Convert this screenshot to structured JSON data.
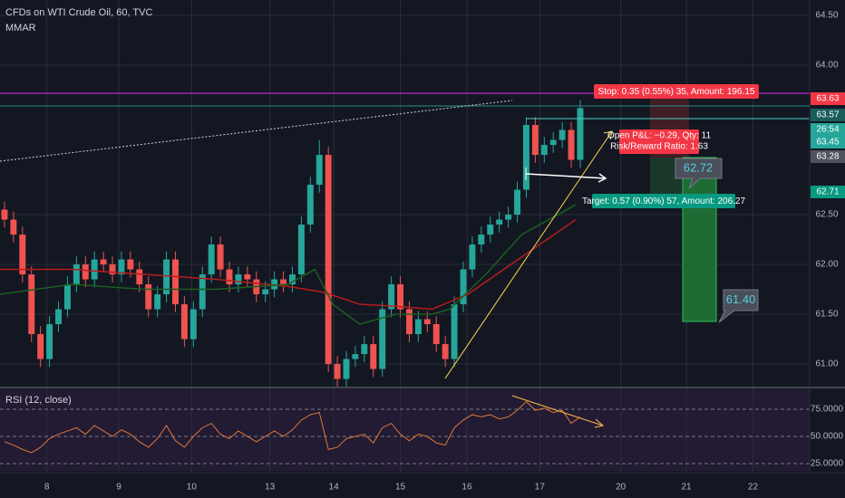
{
  "header": {
    "title": "CFDs on WTI Crude Oil, 60, TVC",
    "indicator": "MMAR"
  },
  "chart_data": [
    {
      "type": "candlestick",
      "xlim": [
        0,
        90
      ],
      "xticks": [
        {
          "value": 5.2,
          "label": "8"
        },
        {
          "value": 13.2,
          "label": "9"
        },
        {
          "value": 21.3,
          "label": "10"
        },
        {
          "value": 30.0,
          "label": "13"
        },
        {
          "value": 37.1,
          "label": "14"
        },
        {
          "value": 44.5,
          "label": "15"
        },
        {
          "value": 51.9,
          "label": "16"
        },
        {
          "value": 60.0,
          "label": "17"
        },
        {
          "value": 69.0,
          "label": "20"
        },
        {
          "value": 76.3,
          "label": "21"
        },
        {
          "value": 83.7,
          "label": "22"
        }
      ],
      "ylim": [
        60.773,
        64.655
      ],
      "yticks": [
        {
          "value": 64.5,
          "label": "64.50"
        },
        {
          "value": 64.0,
          "label": "64.00"
        },
        {
          "value": 62.5,
          "label": "62.50"
        },
        {
          "value": 62.0,
          "label": "62.00"
        },
        {
          "value": 61.5,
          "label": "61.50"
        },
        {
          "value": 61.0,
          "label": "61.00"
        }
      ],
      "grid": true,
      "up_color": "#26a69a",
      "down_color": "#ef5350",
      "open": [
        62.55,
        62.45,
        62.3,
        61.9,
        61.3,
        61.05,
        61.4,
        61.55,
        61.8,
        62.0,
        61.85,
        62.05,
        62.0,
        61.9,
        62.05,
        61.95,
        61.8,
        61.55,
        61.7,
        62.05,
        61.6,
        61.25,
        61.55,
        61.9,
        62.2,
        61.95,
        61.8,
        61.9,
        61.85,
        61.7,
        61.75,
        61.85,
        61.8,
        61.9,
        62.4,
        62.8,
        63.1,
        61.0,
        60.85,
        61.05,
        61.1,
        61.2,
        60.95,
        61.55,
        61.8,
        61.55,
        61.3,
        61.45,
        61.4,
        61.2,
        61.05,
        61.6,
        61.95,
        62.2,
        62.3,
        62.4,
        62.45,
        62.5,
        62.75,
        63.4,
        63.1,
        63.2,
        63.25,
        63.35,
        63.05
      ],
      "high": [
        62.63,
        62.53,
        62.38,
        61.98,
        61.38,
        61.48,
        61.63,
        61.88,
        62.08,
        62.08,
        62.13,
        62.13,
        62.08,
        62.13,
        62.13,
        62.03,
        61.88,
        61.78,
        62.13,
        62.13,
        61.68,
        61.63,
        61.98,
        62.28,
        62.28,
        62.03,
        61.98,
        61.98,
        61.93,
        61.83,
        61.93,
        61.93,
        61.98,
        62.48,
        62.88,
        63.25,
        63.18,
        61.08,
        61.13,
        61.18,
        61.28,
        61.28,
        61.63,
        61.88,
        61.88,
        61.63,
        61.53,
        61.53,
        61.48,
        61.28,
        61.68,
        62.03,
        62.28,
        62.38,
        62.48,
        62.53,
        62.58,
        62.83,
        63.48,
        63.48,
        63.28,
        63.33,
        63.43,
        63.43,
        63.65
      ],
      "low": [
        62.37,
        62.22,
        61.82,
        61.22,
        60.97,
        60.97,
        61.32,
        61.47,
        61.72,
        61.77,
        61.77,
        61.92,
        61.82,
        61.82,
        61.87,
        61.72,
        61.47,
        61.47,
        61.62,
        61.52,
        61.17,
        61.17,
        61.47,
        61.82,
        61.87,
        61.72,
        61.72,
        61.77,
        61.62,
        61.62,
        61.67,
        61.72,
        61.72,
        61.82,
        62.32,
        62.72,
        60.92,
        60.77,
        60.77,
        60.97,
        61.02,
        60.87,
        60.87,
        61.47,
        61.47,
        61.22,
        61.22,
        61.32,
        61.12,
        60.97,
        60.97,
        61.52,
        61.87,
        62.12,
        62.22,
        62.32,
        62.37,
        62.42,
        62.67,
        63.02,
        63.02,
        63.12,
        63.17,
        62.97,
        62.97
      ],
      "close": [
        62.45,
        62.3,
        61.9,
        61.3,
        61.05,
        61.4,
        61.55,
        61.8,
        62.0,
        61.85,
        62.05,
        62.0,
        61.9,
        62.05,
        61.95,
        61.8,
        61.55,
        61.7,
        62.05,
        61.6,
        61.25,
        61.55,
        61.9,
        62.2,
        61.95,
        61.8,
        61.9,
        61.85,
        61.7,
        61.75,
        61.85,
        61.8,
        61.9,
        62.4,
        62.8,
        63.1,
        61.0,
        60.85,
        61.05,
        61.1,
        61.2,
        60.95,
        61.55,
        61.8,
        61.55,
        61.3,
        61.45,
        61.4,
        61.2,
        61.05,
        61.6,
        61.95,
        62.2,
        62.3,
        62.4,
        62.45,
        62.5,
        62.75,
        63.4,
        63.1,
        63.2,
        63.25,
        63.35,
        63.05,
        63.57
      ],
      "overlays": [
        {
          "color": "#b71c1c",
          "x": [
            0,
            8,
            16,
            24,
            32,
            36,
            40,
            44,
            48,
            52,
            56,
            60,
            64
          ],
          "values": [
            61.95,
            61.95,
            61.9,
            61.85,
            61.78,
            61.72,
            61.6,
            61.58,
            61.55,
            61.7,
            61.95,
            62.2,
            62.45
          ]
        },
        {
          "color": "#1b5e20",
          "x": [
            0,
            8,
            16,
            24,
            32,
            35,
            37,
            40,
            44,
            48,
            50,
            54,
            58,
            62,
            64
          ],
          "values": [
            61.7,
            61.8,
            61.75,
            61.75,
            61.8,
            61.95,
            61.6,
            61.4,
            61.5,
            61.5,
            61.55,
            61.9,
            62.3,
            62.5,
            62.6
          ]
        }
      ]
    },
    {
      "type": "line",
      "title": "RSI (12, close)",
      "color": "#e0773a",
      "ylim": [
        18.3,
        93.3
      ],
      "yticks": [
        {
          "value": 75,
          "label": "75.0000"
        },
        {
          "value": 50,
          "label": "50.0000"
        },
        {
          "value": 25,
          "label": "25.0000"
        }
      ],
      "values": [
        45,
        42,
        38,
        35,
        40,
        48,
        52,
        55,
        58,
        52,
        60,
        55,
        50,
        56,
        52,
        45,
        40,
        48,
        60,
        46,
        40,
        50,
        58,
        62,
        52,
        48,
        55,
        50,
        45,
        50,
        55,
        50,
        56,
        65,
        70,
        72,
        38,
        40,
        48,
        50,
        52,
        44,
        58,
        62,
        52,
        46,
        52,
        50,
        44,
        42,
        58,
        65,
        70,
        68,
        70,
        66,
        68,
        74,
        82,
        74,
        76,
        72,
        74,
        62,
        68
      ]
    }
  ],
  "price_tags": [
    "63.63",
    "63.57",
    "26:54",
    "63.45",
    "63.28",
    "62.71"
  ],
  "position": {
    "stop": "Stop: 0.35 (0.55%) 35, Amount: 196.15",
    "pnl": "Open P&L: −0.29, Qty: 11",
    "ratio": "Risk/Reward Ratio: 1.63",
    "target": "Target: 0.57 (0.90%) 57, Amount: 206.27",
    "callout_1": "62.72",
    "callout_2": "61.40"
  }
}
